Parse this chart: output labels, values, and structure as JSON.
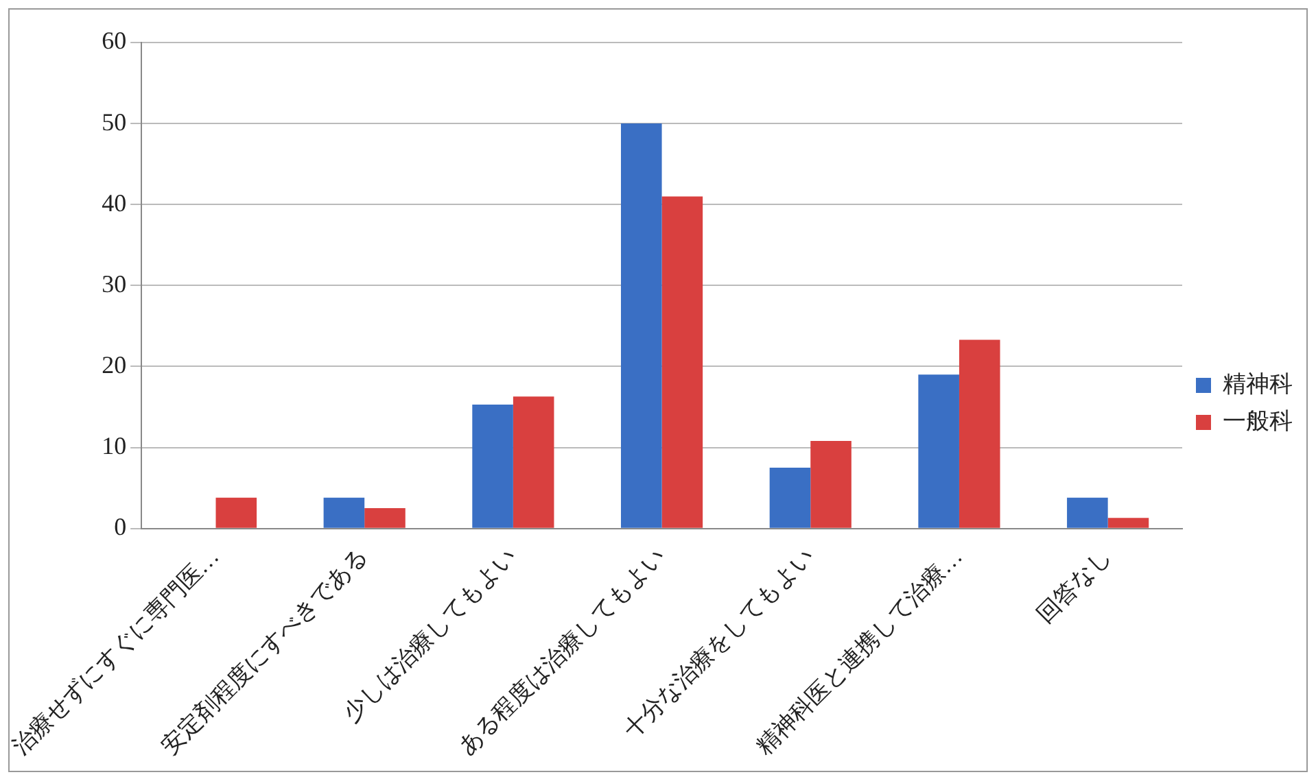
{
  "chart_data": {
    "type": "bar",
    "categories": [
      "治療せずにすぐに専門医…",
      "安定剤程度にすべきである",
      "少しは治療してもよい",
      "ある程度は治療してもよい",
      "十分な治療をしてもよい",
      "精神科医と連携して治療…",
      "回答なし"
    ],
    "series": [
      {
        "name": "精神科",
        "color": "#3a6fc4",
        "values": [
          0,
          3.8,
          15.3,
          50,
          7.5,
          19,
          3.8
        ]
      },
      {
        "name": "一般科",
        "color": "#d9403f",
        "values": [
          3.8,
          2.5,
          16.3,
          41,
          10.8,
          23.3,
          1.3
        ]
      }
    ],
    "ylim": [
      0,
      60
    ],
    "yticks": [
      0,
      10,
      20,
      30,
      40,
      50,
      60
    ],
    "grid": "y",
    "legend": "right"
  }
}
